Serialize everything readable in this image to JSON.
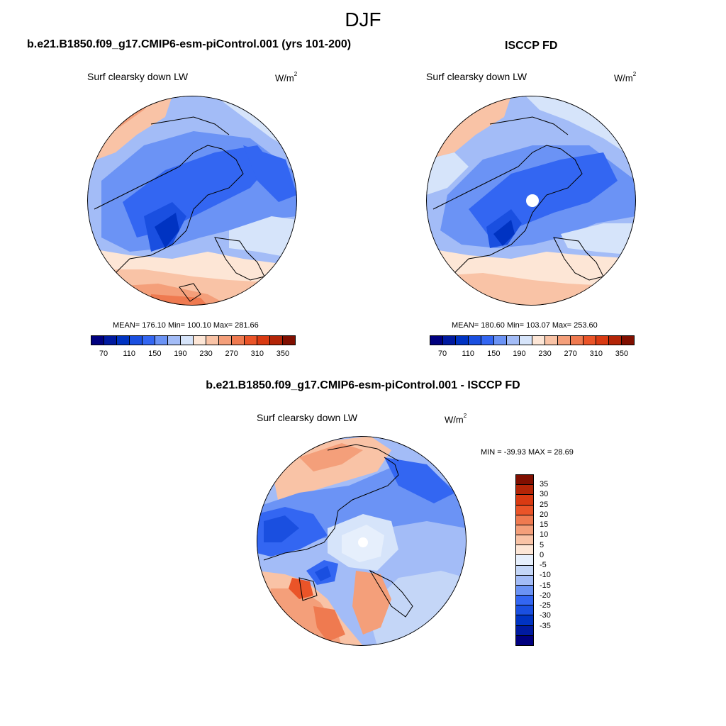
{
  "figure": {
    "season": "DJF"
  },
  "panels": {
    "model": {
      "title": "b.e21.B1850.f09_g17.CMIP6-esm-piControl.001 (yrs 101-200)",
      "variable": "Surf clearsky down LW",
      "units_base": "W/m",
      "units_exp": "2",
      "stats": "MEAN= 176.10  Min= 100.10  Max= 281.66"
    },
    "obs": {
      "title": "ISCCP FD",
      "variable": "Surf clearsky down LW",
      "units_base": "W/m",
      "units_exp": "2",
      "stats": "MEAN= 180.60  Min= 103.07  Max= 253.60"
    },
    "diff": {
      "title": "b.e21.B1850.f09_g17.CMIP6-esm-piControl.001 - ISCCP FD",
      "variable": "Surf clearsky down LW",
      "units_base": "W/m",
      "units_exp": "2",
      "stats": "MIN = -39.93 MAX =  28.69"
    }
  },
  "colorbars": {
    "absolute": {
      "colors": [
        "#00007f",
        "#001aa0",
        "#0033c2",
        "#1a4fe0",
        "#3366f2",
        "#6b93f5",
        "#a3bcf7",
        "#d6e4fa",
        "#fde6d6",
        "#f9c3a6",
        "#f49f7a",
        "#ef7a50",
        "#ea5428",
        "#d93a12",
        "#b32507",
        "#800f00"
      ],
      "tick_labels": [
        "70",
        "110",
        "150",
        "190",
        "230",
        "270",
        "310",
        "350"
      ]
    },
    "difference": {
      "colors": [
        "#800f00",
        "#b32507",
        "#d93a12",
        "#ea5428",
        "#ef7a50",
        "#f49f7a",
        "#f9c3a6",
        "#fde6d6",
        "#e6effc",
        "#c4d6f7",
        "#a3bcf7",
        "#6b93f5",
        "#3366f2",
        "#1a4fe0",
        "#0033c2",
        "#001aa0",
        "#00007f"
      ],
      "tick_labels": [
        "35",
        "30",
        "25",
        "20",
        "15",
        "10",
        "5",
        "0",
        "-5",
        "-10",
        "-15",
        "-20",
        "-25",
        "-30",
        "-35"
      ]
    }
  }
}
